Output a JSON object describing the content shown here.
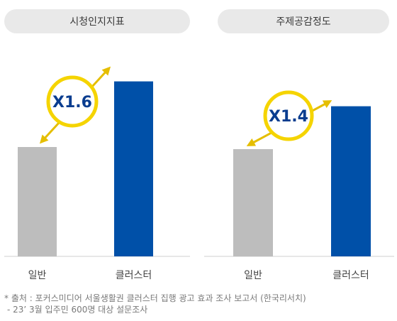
{
  "chart_data": [
    {
      "type": "bar",
      "title": "시청인지지표",
      "categories": [
        "일반",
        "클러스터"
      ],
      "values": [
        1.0,
        1.6
      ],
      "multiplier_label": "X1.6",
      "colors": [
        "#bdbdbd",
        "#0050a8"
      ]
    },
    {
      "type": "bar",
      "title": "주제공감정도",
      "categories": [
        "일반",
        "클러스터"
      ],
      "values": [
        1.0,
        1.4
      ],
      "multiplier_label": "X1.4",
      "colors": [
        "#bdbdbd",
        "#0050a8"
      ]
    }
  ],
  "colors": {
    "baseline_bar": "#bdbdbd",
    "cluster_bar": "#0050a8",
    "badge_border": "#f5d400",
    "badge_text": "#0a3d8f",
    "arrow": "#e5be00",
    "axis_line": "#cfcfcf"
  },
  "footnote": {
    "line1": "* 출처 : 포커스미디어 서울생활권 클러스터 집행 광고 효과 조사 보고서 (한국리서치)",
    "line2": "- 23’ 3월 입주민 600명 대상 설문조사"
  }
}
